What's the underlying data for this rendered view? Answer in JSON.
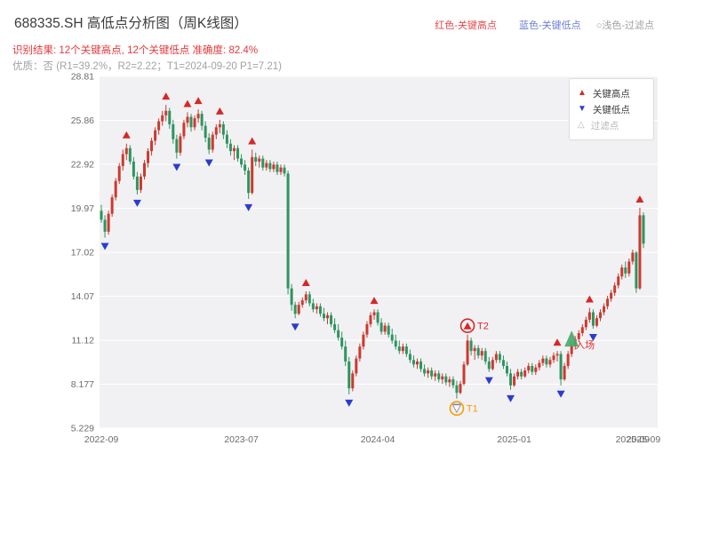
{
  "header": {
    "title": "688335.SH 高低点分析图（周K线图）",
    "result_line": "识别结果: 12个关键高点, 12个关键低点  准确度: 82.4%",
    "quality_line": "优质：否 (R1=39.2%，R2=2.22；T1=2024-09-20 P1=7.21)",
    "legend_top": {
      "high": "红色-关键高点",
      "low": "蓝色-关键低点",
      "filter": "○浅色-过滤点"
    }
  },
  "legend_box": {
    "items": [
      {
        "label": "关键高点",
        "marker": "up-triangle",
        "color": "#d62728"
      },
      {
        "label": "关键低点",
        "marker": "down-triangle",
        "color": "#2b3bd2"
      },
      {
        "label": "过滤点",
        "marker": "open-triangle",
        "color": "#b5b5b5"
      }
    ]
  },
  "chart_data": {
    "type": "candlestick",
    "title": "688335.SH 高低点分析图（周K线图）",
    "ylabel": "",
    "xlabel": "",
    "ylim": [
      5.229,
      28.81
    ],
    "yticks": [
      28.81,
      25.86,
      22.92,
      19.97,
      17.02,
      14.07,
      11.12,
      8.177,
      5.229
    ],
    "xticks": [
      {
        "label": "2022-09",
        "index": 0
      },
      {
        "label": "2023-07",
        "index": 39
      },
      {
        "label": "2024-04",
        "index": 77
      },
      {
        "label": "2025-01",
        "index": 115
      },
      {
        "label": "2025-09",
        "index": 148
      },
      {
        "label": "2025-09",
        "index": 151
      }
    ],
    "grid": true,
    "colors": {
      "up": "#cb3a2f",
      "down": "#2e9460",
      "key_high": "#d62728",
      "key_low": "#2b3bd2",
      "filtered_ring": "#f59f00",
      "entry": "#46a96a",
      "entry_label": "#e03131",
      "plot_bg": "#f1f1f3",
      "gridline": "#ffffff",
      "tick_text": "#6b6b6b"
    },
    "candles": [
      [
        19.8,
        20.2,
        19.0,
        19.2
      ],
      [
        19.2,
        19.5,
        18.0,
        18.4
      ],
      [
        18.4,
        19.8,
        18.2,
        19.6
      ],
      [
        19.6,
        20.9,
        19.4,
        20.7
      ],
      [
        20.7,
        22.0,
        20.5,
        21.8
      ],
      [
        21.8,
        23.0,
        21.6,
        22.8
      ],
      [
        22.8,
        23.9,
        22.5,
        23.6
      ],
      [
        23.6,
        24.3,
        23.2,
        24.0
      ],
      [
        24.0,
        24.2,
        22.9,
        23.1
      ],
      [
        23.1,
        23.4,
        21.9,
        22.1
      ],
      [
        22.1,
        22.4,
        20.9,
        21.2
      ],
      [
        21.2,
        22.3,
        21.0,
        22.1
      ],
      [
        22.1,
        23.2,
        21.9,
        23.0
      ],
      [
        23.0,
        24.0,
        22.7,
        23.8
      ],
      [
        23.8,
        24.7,
        23.5,
        24.5
      ],
      [
        24.5,
        25.4,
        24.2,
        25.2
      ],
      [
        25.2,
        26.0,
        24.9,
        25.8
      ],
      [
        25.8,
        26.5,
        25.5,
        26.2
      ],
      [
        26.2,
        26.9,
        25.8,
        26.5
      ],
      [
        26.5,
        26.7,
        25.3,
        25.6
      ],
      [
        25.6,
        25.9,
        24.3,
        24.6
      ],
      [
        24.6,
        24.9,
        23.3,
        23.7
      ],
      [
        23.7,
        25.0,
        23.5,
        24.8
      ],
      [
        24.8,
        25.9,
        24.6,
        25.7
      ],
      [
        25.7,
        26.4,
        25.4,
        26.1
      ],
      [
        26.1,
        26.3,
        25.1,
        25.4
      ],
      [
        25.4,
        26.2,
        25.2,
        26.0
      ],
      [
        26.0,
        26.6,
        25.7,
        26.3
      ],
      [
        26.3,
        26.5,
        25.2,
        25.5
      ],
      [
        25.5,
        25.8,
        24.4,
        24.7
      ],
      [
        24.7,
        25.0,
        23.6,
        23.9
      ],
      [
        23.9,
        25.1,
        23.7,
        24.9
      ],
      [
        24.9,
        25.6,
        24.6,
        25.4
      ],
      [
        25.4,
        25.9,
        25.0,
        25.6
      ],
      [
        25.6,
        25.8,
        24.6,
        24.9
      ],
      [
        24.9,
        25.2,
        24.0,
        24.3
      ],
      [
        24.3,
        24.6,
        23.5,
        23.8
      ],
      [
        23.8,
        24.2,
        23.2,
        24.0
      ],
      [
        24.0,
        24.2,
        23.1,
        23.3
      ],
      [
        23.3,
        23.6,
        22.7,
        22.9
      ],
      [
        22.9,
        23.2,
        22.2,
        22.5
      ],
      [
        22.5,
        22.7,
        20.6,
        21.0
      ],
      [
        21.0,
        23.9,
        20.9,
        23.4
      ],
      [
        23.4,
        23.7,
        22.8,
        23.1
      ],
      [
        23.1,
        23.5,
        22.7,
        23.3
      ],
      [
        23.3,
        23.5,
        22.5,
        22.7
      ],
      [
        22.7,
        23.2,
        22.5,
        23.0
      ],
      [
        23.0,
        23.2,
        22.4,
        22.6
      ],
      [
        22.6,
        23.1,
        22.4,
        22.9
      ],
      [
        22.9,
        23.1,
        22.2,
        22.4
      ],
      [
        22.4,
        22.9,
        22.2,
        22.7
      ],
      [
        22.7,
        22.9,
        22.1,
        22.3
      ],
      [
        22.3,
        22.5,
        14.2,
        14.6
      ],
      [
        14.6,
        14.9,
        13.1,
        13.5
      ],
      [
        13.5,
        13.7,
        12.6,
        12.9
      ],
      [
        12.9,
        13.7,
        12.8,
        13.5
      ],
      [
        13.5,
        14.0,
        13.3,
        13.8
      ],
      [
        13.8,
        14.4,
        13.6,
        14.2
      ],
      [
        14.2,
        14.4,
        13.4,
        13.6
      ],
      [
        13.6,
        13.9,
        13.0,
        13.2
      ],
      [
        13.2,
        13.6,
        12.9,
        13.4
      ],
      [
        13.4,
        13.6,
        12.7,
        12.9
      ],
      [
        12.9,
        13.3,
        12.4,
        12.6
      ],
      [
        12.6,
        13.0,
        12.2,
        12.8
      ],
      [
        12.8,
        13.0,
        12.0,
        12.2
      ],
      [
        12.2,
        12.6,
        11.6,
        11.8
      ],
      [
        11.8,
        12.2,
        11.1,
        11.3
      ],
      [
        11.3,
        11.7,
        10.5,
        10.7
      ],
      [
        10.7,
        11.1,
        9.4,
        9.7
      ],
      [
        9.7,
        10.0,
        7.5,
        7.9
      ],
      [
        7.9,
        9.1,
        7.7,
        8.9
      ],
      [
        8.9,
        10.1,
        8.7,
        9.9
      ],
      [
        9.9,
        10.9,
        9.7,
        10.7
      ],
      [
        10.7,
        11.7,
        10.5,
        11.5
      ],
      [
        11.5,
        12.4,
        11.3,
        12.2
      ],
      [
        12.2,
        13.0,
        12.0,
        12.8
      ],
      [
        12.8,
        13.2,
        12.5,
        13.0
      ],
      [
        13.0,
        13.2,
        12.1,
        12.3
      ],
      [
        12.3,
        12.6,
        11.5,
        11.7
      ],
      [
        11.7,
        12.3,
        11.5,
        12.1
      ],
      [
        12.1,
        12.3,
        11.3,
        11.5
      ],
      [
        11.5,
        11.9,
        10.9,
        11.1
      ],
      [
        11.1,
        11.5,
        10.5,
        10.7
      ],
      [
        10.7,
        11.1,
        10.2,
        10.4
      ],
      [
        10.4,
        10.9,
        10.2,
        10.7
      ],
      [
        10.7,
        10.9,
        10.0,
        10.2
      ],
      [
        10.2,
        10.5,
        9.6,
        9.8
      ],
      [
        9.8,
        10.1,
        9.3,
        9.5
      ],
      [
        9.5,
        9.9,
        9.2,
        9.7
      ],
      [
        9.7,
        9.9,
        9.0,
        9.2
      ],
      [
        9.2,
        9.5,
        8.7,
        8.9
      ],
      [
        8.9,
        9.3,
        8.6,
        9.1
      ],
      [
        9.1,
        9.3,
        8.5,
        8.7
      ],
      [
        8.7,
        9.1,
        8.4,
        8.9
      ],
      [
        8.9,
        9.1,
        8.3,
        8.5
      ],
      [
        8.5,
        8.9,
        8.2,
        8.7
      ],
      [
        8.7,
        8.9,
        8.1,
        8.3
      ],
      [
        8.3,
        8.7,
        8.0,
        8.5
      ],
      [
        8.5,
        8.7,
        7.9,
        8.1
      ],
      [
        8.1,
        8.4,
        7.21,
        7.6
      ],
      [
        7.6,
        8.4,
        7.5,
        8.2
      ],
      [
        8.2,
        9.7,
        8.1,
        9.5
      ],
      [
        9.5,
        11.5,
        9.4,
        11.1
      ],
      [
        11.1,
        11.3,
        10.1,
        10.4
      ],
      [
        10.4,
        10.8,
        9.8,
        10.6
      ],
      [
        10.6,
        10.8,
        9.9,
        10.1
      ],
      [
        10.1,
        10.6,
        9.8,
        10.4
      ],
      [
        10.4,
        10.6,
        9.5,
        9.7
      ],
      [
        9.7,
        10.0,
        9.0,
        9.2
      ],
      [
        9.2,
        10.0,
        9.1,
        9.8
      ],
      [
        9.8,
        10.4,
        9.6,
        10.2
      ],
      [
        10.2,
        10.4,
        9.6,
        9.8
      ],
      [
        9.8,
        10.1,
        9.2,
        9.4
      ],
      [
        9.4,
        9.7,
        8.7,
        8.9
      ],
      [
        8.9,
        9.2,
        7.8,
        8.1
      ],
      [
        8.1,
        8.9,
        8.0,
        8.7
      ],
      [
        8.7,
        9.2,
        8.5,
        9.0
      ],
      [
        9.0,
        9.2,
        8.5,
        8.7
      ],
      [
        8.7,
        9.3,
        8.6,
        9.1
      ],
      [
        9.1,
        9.6,
        8.9,
        9.4
      ],
      [
        9.4,
        9.6,
        8.8,
        9.0
      ],
      [
        9.0,
        9.5,
        8.8,
        9.3
      ],
      [
        9.3,
        9.8,
        9.1,
        9.6
      ],
      [
        9.6,
        10.1,
        9.4,
        9.9
      ],
      [
        9.9,
        10.1,
        9.3,
        9.5
      ],
      [
        9.5,
        10.0,
        9.3,
        9.8
      ],
      [
        9.8,
        10.3,
        9.6,
        10.1
      ],
      [
        10.1,
        10.4,
        9.7,
        10.2
      ],
      [
        10.2,
        10.4,
        8.1,
        8.5
      ],
      [
        8.5,
        9.6,
        8.4,
        9.4
      ],
      [
        9.4,
        10.4,
        9.2,
        10.2
      ],
      [
        10.2,
        11.0,
        10.0,
        10.8
      ],
      [
        10.8,
        11.4,
        10.5,
        11.2
      ],
      [
        11.2,
        11.8,
        11.0,
        11.6
      ],
      [
        11.6,
        12.2,
        11.4,
        12.0
      ],
      [
        12.0,
        12.7,
        11.8,
        12.5
      ],
      [
        12.5,
        13.3,
        12.3,
        13.0
      ],
      [
        13.0,
        13.2,
        11.9,
        12.1
      ],
      [
        12.1,
        12.8,
        12.0,
        12.6
      ],
      [
        12.6,
        13.2,
        12.4,
        13.0
      ],
      [
        13.0,
        13.6,
        12.8,
        13.4
      ],
      [
        13.4,
        14.1,
        13.2,
        13.9
      ],
      [
        13.9,
        14.5,
        13.7,
        14.3
      ],
      [
        14.3,
        15.0,
        14.1,
        14.8
      ],
      [
        14.8,
        15.6,
        14.6,
        15.4
      ],
      [
        15.4,
        16.2,
        15.2,
        16.0
      ],
      [
        16.0,
        16.4,
        15.3,
        15.6
      ],
      [
        15.6,
        16.6,
        15.4,
        16.4
      ],
      [
        16.4,
        17.2,
        16.2,
        17.0
      ],
      [
        17.0,
        17.1,
        14.3,
        14.6
      ],
      [
        14.6,
        20.0,
        14.5,
        19.5
      ],
      [
        19.5,
        19.7,
        17.3,
        17.6
      ]
    ],
    "key_highs": [
      {
        "i": 7,
        "p": 24.3
      },
      {
        "i": 18,
        "p": 26.9
      },
      {
        "i": 24,
        "p": 26.4
      },
      {
        "i": 27,
        "p": 26.6
      },
      {
        "i": 33,
        "p": 25.9
      },
      {
        "i": 42,
        "p": 23.9
      },
      {
        "i": 57,
        "p": 14.4
      },
      {
        "i": 76,
        "p": 13.2
      },
      {
        "i": 102,
        "p": 11.5
      },
      {
        "i": 127,
        "p": 10.4
      },
      {
        "i": 136,
        "p": 13.3
      },
      {
        "i": 150,
        "p": 20.0
      }
    ],
    "key_lows": [
      {
        "i": 1,
        "p": 18.0
      },
      {
        "i": 10,
        "p": 20.9
      },
      {
        "i": 21,
        "p": 23.3
      },
      {
        "i": 30,
        "p": 23.6
      },
      {
        "i": 41,
        "p": 20.6
      },
      {
        "i": 54,
        "p": 12.6
      },
      {
        "i": 69,
        "p": 7.5
      },
      {
        "i": 99,
        "p": 7.21
      },
      {
        "i": 108,
        "p": 9.0
      },
      {
        "i": 114,
        "p": 7.8
      },
      {
        "i": 128,
        "p": 8.1
      },
      {
        "i": 137,
        "p": 11.9
      }
    ],
    "annotations": [
      {
        "id": "T1",
        "label": "T1",
        "index": 99,
        "price": 7.21,
        "kind": "filtered-low",
        "ring_color": "#f59f00",
        "label_color": "#f59f00"
      },
      {
        "id": "T2",
        "label": "T2",
        "index": 102,
        "price": 11.5,
        "kind": "circled-high",
        "ring_color": "#d62728",
        "label_color": "#d62728"
      },
      {
        "id": "entry",
        "label": "入场",
        "index": 131,
        "price": 10.7,
        "kind": "entry",
        "label_color": "#e03131"
      }
    ]
  }
}
